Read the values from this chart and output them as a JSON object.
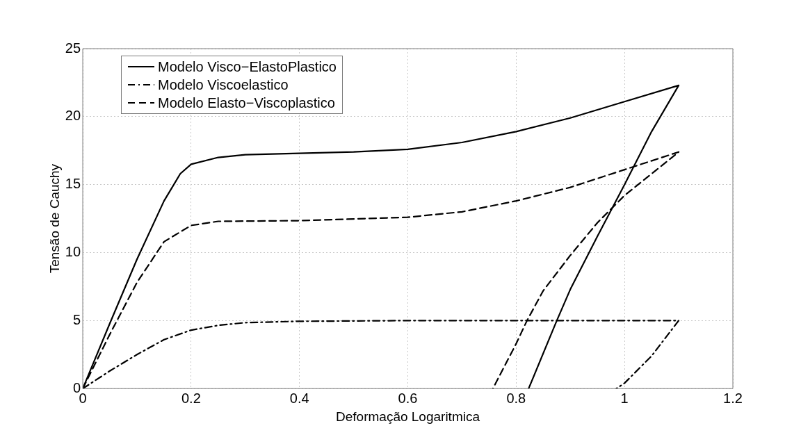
{
  "chart_data": {
    "type": "line",
    "xlabel": "Deformação Logaritmica",
    "ylabel": "Tensão de Cauchy",
    "xlim": [
      0,
      1.2
    ],
    "ylim": [
      0,
      25
    ],
    "xticks": [
      0,
      0.2,
      0.4,
      0.6,
      0.8,
      1,
      1.2
    ],
    "yticks": [
      0,
      5,
      10,
      15,
      20,
      25
    ],
    "grid": true,
    "legend": "top left",
    "marker": "none",
    "series": [
      {
        "name": "Modelo Visco−ElastoPlastico",
        "color": "#000000",
        "line_style": "solid",
        "x": [
          0,
          0.05,
          0.1,
          0.15,
          0.18,
          0.2,
          0.25,
          0.3,
          0.4,
          0.5,
          0.6,
          0.7,
          0.8,
          0.9,
          1.0,
          1.1,
          1.05,
          1.0,
          0.95,
          0.9,
          0.875,
          0.823
        ],
        "values": [
          0,
          4.8,
          9.5,
          13.8,
          15.8,
          16.5,
          17,
          17.2,
          17.3,
          17.4,
          17.6,
          18.1,
          18.9,
          19.9,
          21.1,
          22.3,
          18.9,
          15.0,
          11.2,
          7.3,
          5,
          0
        ]
      },
      {
        "name": "Modelo Viscoelastico",
        "color": "#000000",
        "line_style": "dashdot",
        "x": [
          0,
          0.05,
          0.1,
          0.15,
          0.2,
          0.25,
          0.3,
          0.4,
          0.6,
          1.1,
          1.05,
          1.0,
          0.985
        ],
        "values": [
          0,
          1.3,
          2.5,
          3.6,
          4.3,
          4.65,
          4.85,
          4.95,
          5,
          5,
          2.4,
          0.4,
          0
        ]
      },
      {
        "name": "Modelo Elasto−Viscoplastico",
        "color": "#000000",
        "line_style": "dashed",
        "x": [
          0,
          0.05,
          0.1,
          0.15,
          0.2,
          0.25,
          0.4,
          0.6,
          0.7,
          0.8,
          0.9,
          1.0,
          1.1,
          1.05,
          1.0,
          0.95,
          0.9,
          0.85,
          0.82,
          0.8,
          0.757
        ],
        "values": [
          0,
          4,
          7.8,
          10.8,
          12,
          12.3,
          12.35,
          12.6,
          13,
          13.8,
          14.8,
          16.1,
          17.4,
          15.8,
          14.2,
          12.2,
          9.8,
          7.2,
          5,
          3.3,
          0
        ]
      }
    ]
  }
}
